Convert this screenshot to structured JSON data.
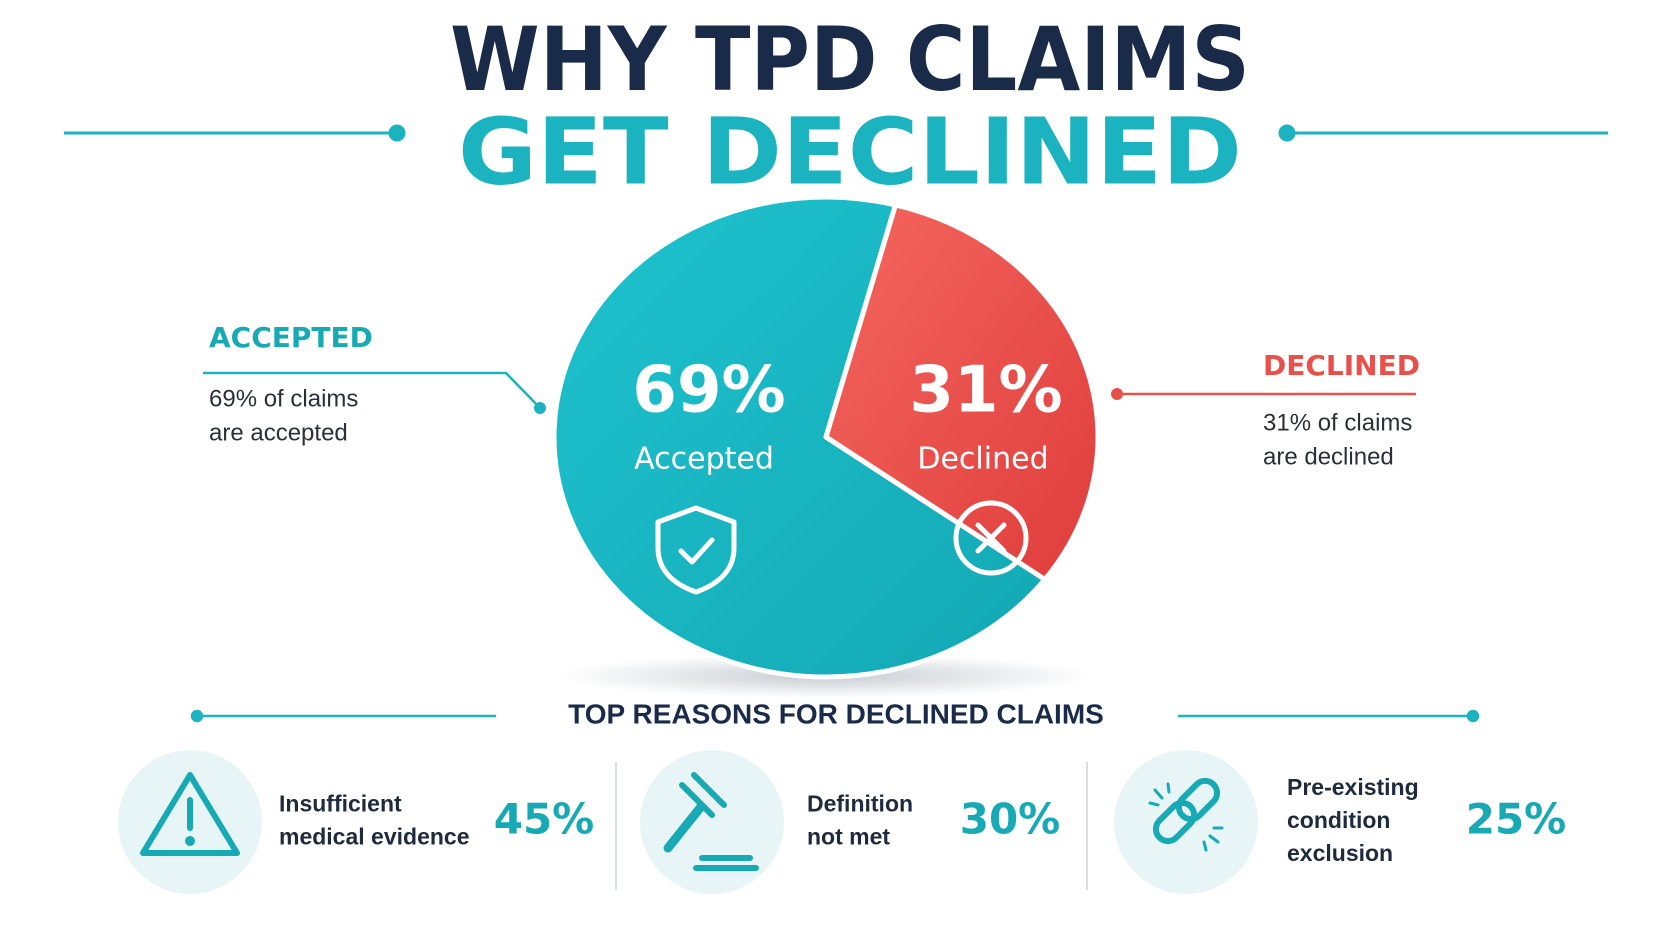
{
  "header": {
    "title_lines": [
      "WHY TPD CLAIMS",
      "GET DECLINED"
    ]
  },
  "chart_data": {
    "type": "pie",
    "categories": [
      "Accepted",
      "Declined"
    ],
    "values": [
      69,
      31
    ],
    "value_labels": [
      "69%",
      "31%"
    ],
    "colors": [
      "#17b5c1",
      "#e94a45"
    ]
  },
  "callouts": [
    {
      "heading": "ACCEPTED",
      "lines": [
        "69% of claims",
        "are accepted"
      ]
    },
    {
      "heading": "DECLINED",
      "lines": [
        "31% of claims",
        "are declined"
      ]
    }
  ],
  "reasons": {
    "title": "TOP REASONS FOR DECLINED CLAIMS",
    "items": [
      {
        "lines": [
          "Insufficient",
          "medical evidence"
        ],
        "percent": "45%"
      },
      {
        "lines": [
          "Definition",
          "not met"
        ],
        "percent": "30%"
      },
      {
        "lines": [
          "Pre-existing",
          "condition",
          "exclusion"
        ],
        "percent": "25%"
      }
    ]
  }
}
